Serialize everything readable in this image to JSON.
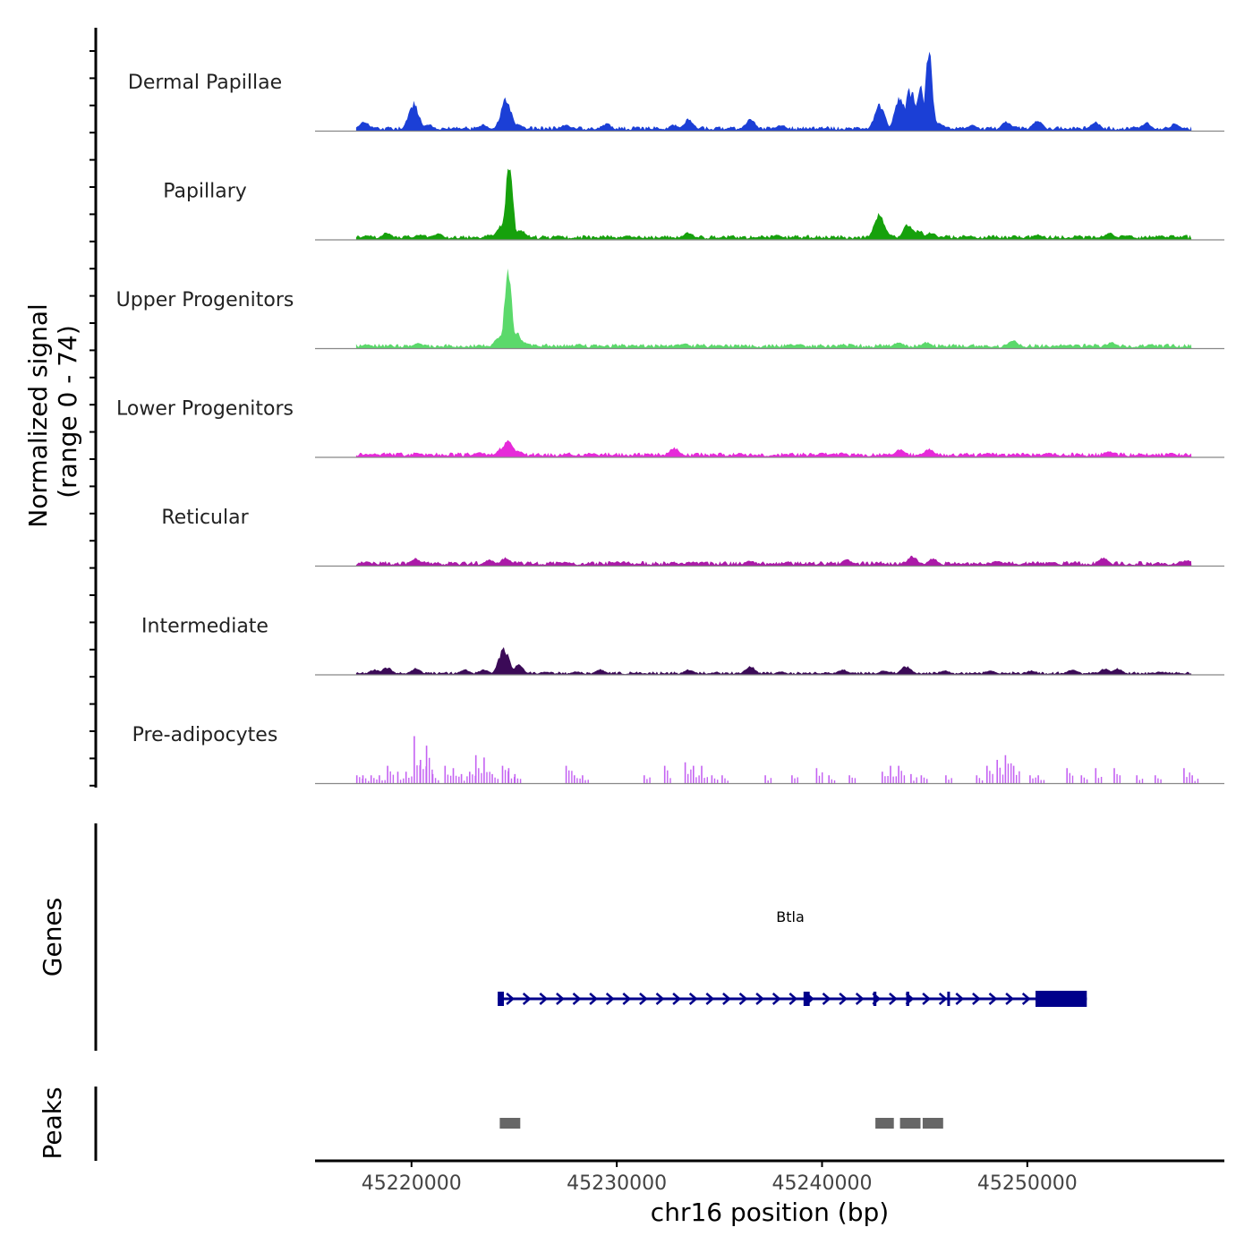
{
  "chart_data": {
    "type": "area",
    "title": "",
    "ylabel": "Normalized signal",
    "ylabel_range": "(range 0 - 74)",
    "xlabel": "chr16 position (bp)",
    "xlim": [
      45215300,
      45259600
    ],
    "ylim": [
      0,
      74
    ],
    "x_ticks": [
      45220000,
      45230000,
      45240000,
      45250000
    ],
    "x_tick_labels": [
      "45220000",
      "45230000",
      "45240000",
      "45250000"
    ],
    "signal_range": [
      45217300,
      45258000
    ],
    "tracks": [
      {
        "name": "Dermal Papillae",
        "color": "#1b3fd6",
        "baseline": 3,
        "peaks": [
          {
            "x": 45217700,
            "y": 9
          },
          {
            "x": 45220100,
            "y": 26
          },
          {
            "x": 45220800,
            "y": 7
          },
          {
            "x": 45223500,
            "y": 6
          },
          {
            "x": 45224600,
            "y": 30
          },
          {
            "x": 45225200,
            "y": 7
          },
          {
            "x": 45227500,
            "y": 6
          },
          {
            "x": 45229500,
            "y": 7
          },
          {
            "x": 45232800,
            "y": 6
          },
          {
            "x": 45233500,
            "y": 11
          },
          {
            "x": 45236500,
            "y": 11
          },
          {
            "x": 45238000,
            "y": 6
          },
          {
            "x": 45242800,
            "y": 24
          },
          {
            "x": 45243800,
            "y": 32
          },
          {
            "x": 45244300,
            "y": 38
          },
          {
            "x": 45244800,
            "y": 42
          },
          {
            "x": 45245200,
            "y": 74
          },
          {
            "x": 45245700,
            "y": 8
          },
          {
            "x": 45247300,
            "y": 6
          },
          {
            "x": 45249000,
            "y": 9
          },
          {
            "x": 45250500,
            "y": 10
          },
          {
            "x": 45253300,
            "y": 9
          },
          {
            "x": 45255800,
            "y": 8
          },
          {
            "x": 45257200,
            "y": 7
          }
        ]
      },
      {
        "name": "Papillary",
        "color": "#16a10c",
        "baseline": 3,
        "peaks": [
          {
            "x": 45217800,
            "y": 4
          },
          {
            "x": 45218800,
            "y": 7
          },
          {
            "x": 45220400,
            "y": 5
          },
          {
            "x": 45221300,
            "y": 6
          },
          {
            "x": 45223800,
            "y": 5
          },
          {
            "x": 45224400,
            "y": 15
          },
          {
            "x": 45224750,
            "y": 74
          },
          {
            "x": 45225300,
            "y": 10
          },
          {
            "x": 45227200,
            "y": 4
          },
          {
            "x": 45230500,
            "y": 4
          },
          {
            "x": 45233500,
            "y": 7
          },
          {
            "x": 45237800,
            "y": 5
          },
          {
            "x": 45242800,
            "y": 24
          },
          {
            "x": 45243200,
            "y": 6
          },
          {
            "x": 45244200,
            "y": 15
          },
          {
            "x": 45244700,
            "y": 9
          },
          {
            "x": 45245300,
            "y": 7
          },
          {
            "x": 45247200,
            "y": 4
          },
          {
            "x": 45250500,
            "y": 5
          },
          {
            "x": 45254000,
            "y": 7
          },
          {
            "x": 45256500,
            "y": 4
          }
        ]
      },
      {
        "name": "Upper Progenitors",
        "color": "#5bd96b",
        "baseline": 3,
        "peaks": [
          {
            "x": 45217800,
            "y": 4
          },
          {
            "x": 45220300,
            "y": 5
          },
          {
            "x": 45224300,
            "y": 12
          },
          {
            "x": 45224700,
            "y": 74
          },
          {
            "x": 45225100,
            "y": 15
          },
          {
            "x": 45225500,
            "y": 6
          },
          {
            "x": 45228200,
            "y": 4
          },
          {
            "x": 45233300,
            "y": 5
          },
          {
            "x": 45238500,
            "y": 4
          },
          {
            "x": 45243700,
            "y": 6
          },
          {
            "x": 45245100,
            "y": 6
          },
          {
            "x": 45249300,
            "y": 8
          },
          {
            "x": 45254100,
            "y": 6
          },
          {
            "x": 45256000,
            "y": 4
          }
        ]
      },
      {
        "name": "Lower Progenitors",
        "color": "#e62ad9",
        "baseline": 3,
        "peaks": [
          {
            "x": 45218000,
            "y": 3
          },
          {
            "x": 45220300,
            "y": 4
          },
          {
            "x": 45223300,
            "y": 5
          },
          {
            "x": 45224400,
            "y": 9
          },
          {
            "x": 45224700,
            "y": 16
          },
          {
            "x": 45225200,
            "y": 6
          },
          {
            "x": 45228800,
            "y": 4
          },
          {
            "x": 45232800,
            "y": 9
          },
          {
            "x": 45236000,
            "y": 4
          },
          {
            "x": 45240000,
            "y": 4
          },
          {
            "x": 45243800,
            "y": 8
          },
          {
            "x": 45245200,
            "y": 8
          },
          {
            "x": 45248000,
            "y": 4
          },
          {
            "x": 45251000,
            "y": 4
          },
          {
            "x": 45254000,
            "y": 6
          },
          {
            "x": 45257000,
            "y": 4
          }
        ]
      },
      {
        "name": "Reticular",
        "color": "#ab1aa8",
        "baseline": 3,
        "peaks": [
          {
            "x": 45217800,
            "y": 4
          },
          {
            "x": 45220200,
            "y": 7
          },
          {
            "x": 45223800,
            "y": 6
          },
          {
            "x": 45224600,
            "y": 8
          },
          {
            "x": 45227500,
            "y": 4
          },
          {
            "x": 45230000,
            "y": 4
          },
          {
            "x": 45233600,
            "y": 4
          },
          {
            "x": 45236500,
            "y": 5
          },
          {
            "x": 45241200,
            "y": 6
          },
          {
            "x": 45244400,
            "y": 9
          },
          {
            "x": 45245400,
            "y": 7
          },
          {
            "x": 45248500,
            "y": 5
          },
          {
            "x": 45251200,
            "y": 4
          },
          {
            "x": 45253700,
            "y": 8
          },
          {
            "x": 45257800,
            "y": 6
          }
        ]
      },
      {
        "name": "Intermediate",
        "color": "#3b0a57",
        "baseline": 2,
        "peaks": [
          {
            "x": 45218200,
            "y": 5
          },
          {
            "x": 45218800,
            "y": 7
          },
          {
            "x": 45220200,
            "y": 6
          },
          {
            "x": 45222600,
            "y": 5
          },
          {
            "x": 45223500,
            "y": 5
          },
          {
            "x": 45224500,
            "y": 24
          },
          {
            "x": 45225200,
            "y": 9
          },
          {
            "x": 45226500,
            "y": 3
          },
          {
            "x": 45228000,
            "y": 3
          },
          {
            "x": 45229200,
            "y": 5
          },
          {
            "x": 45233500,
            "y": 5
          },
          {
            "x": 45236500,
            "y": 8
          },
          {
            "x": 45238000,
            "y": 3
          },
          {
            "x": 45241000,
            "y": 5
          },
          {
            "x": 45243000,
            "y": 4
          },
          {
            "x": 45244100,
            "y": 8
          },
          {
            "x": 45246000,
            "y": 4
          },
          {
            "x": 45248200,
            "y": 4
          },
          {
            "x": 45250200,
            "y": 4
          },
          {
            "x": 45252200,
            "y": 5
          },
          {
            "x": 45253800,
            "y": 6
          },
          {
            "x": 45254400,
            "y": 6
          },
          {
            "x": 45256500,
            "y": 3
          }
        ]
      },
      {
        "name": "Pre-adipocytes",
        "color": "#c462f2",
        "baseline": 0,
        "spikes": [
          {
            "x": 45217300,
            "y": 7
          },
          {
            "x": 45217600,
            "y": 7
          },
          {
            "x": 45218000,
            "y": 7
          },
          {
            "x": 45218400,
            "y": 7
          },
          {
            "x": 45218800,
            "y": 15
          },
          {
            "x": 45219300,
            "y": 10
          },
          {
            "x": 45219700,
            "y": 10
          },
          {
            "x": 45220100,
            "y": 40
          },
          {
            "x": 45220400,
            "y": 20
          },
          {
            "x": 45220700,
            "y": 32
          },
          {
            "x": 45221000,
            "y": 8
          },
          {
            "x": 45221600,
            "y": 15
          },
          {
            "x": 45222000,
            "y": 13
          },
          {
            "x": 45222400,
            "y": 8
          },
          {
            "x": 45222800,
            "y": 10
          },
          {
            "x": 45223100,
            "y": 24
          },
          {
            "x": 45223500,
            "y": 22
          },
          {
            "x": 45223900,
            "y": 8
          },
          {
            "x": 45224400,
            "y": 15
          },
          {
            "x": 45224700,
            "y": 13
          },
          {
            "x": 45225000,
            "y": 8
          },
          {
            "x": 45227500,
            "y": 15
          },
          {
            "x": 45227900,
            "y": 7
          },
          {
            "x": 45228300,
            "y": 7
          },
          {
            "x": 45231300,
            "y": 7
          },
          {
            "x": 45232300,
            "y": 15
          },
          {
            "x": 45233300,
            "y": 18
          },
          {
            "x": 45233700,
            "y": 15
          },
          {
            "x": 45234100,
            "y": 15
          },
          {
            "x": 45234600,
            "y": 7
          },
          {
            "x": 45235100,
            "y": 7
          },
          {
            "x": 45237200,
            "y": 7
          },
          {
            "x": 45238500,
            "y": 7
          },
          {
            "x": 45239700,
            "y": 13
          },
          {
            "x": 45240300,
            "y": 7
          },
          {
            "x": 45241300,
            "y": 7
          },
          {
            "x": 45242900,
            "y": 10
          },
          {
            "x": 45243300,
            "y": 15
          },
          {
            "x": 45243700,
            "y": 15
          },
          {
            "x": 45244300,
            "y": 8
          },
          {
            "x": 45244800,
            "y": 7
          },
          {
            "x": 45246000,
            "y": 7
          },
          {
            "x": 45247500,
            "y": 7
          },
          {
            "x": 45248000,
            "y": 15
          },
          {
            "x": 45248500,
            "y": 20
          },
          {
            "x": 45248900,
            "y": 24
          },
          {
            "x": 45249300,
            "y": 15
          },
          {
            "x": 45250100,
            "y": 7
          },
          {
            "x": 45250500,
            "y": 7
          },
          {
            "x": 45251900,
            "y": 13
          },
          {
            "x": 45252600,
            "y": 7
          },
          {
            "x": 45253300,
            "y": 13
          },
          {
            "x": 45254200,
            "y": 13
          },
          {
            "x": 45255300,
            "y": 7
          },
          {
            "x": 45256200,
            "y": 7
          },
          {
            "x": 45257600,
            "y": 13
          },
          {
            "x": 45258000,
            "y": 7
          }
        ]
      }
    ],
    "genes_panel": {
      "label": "Genes",
      "gene": {
        "name": "Btla",
        "start": 45224200,
        "end": 45252900,
        "strand": "+",
        "color": "#00008b",
        "exons": [
          {
            "start": 45224200,
            "end": 45224500,
            "thick": false
          },
          {
            "start": 45239100,
            "end": 45239400,
            "thick": false
          },
          {
            "start": 45242500,
            "end": 45242650,
            "thick": false
          },
          {
            "start": 45244100,
            "end": 45244250,
            "thick": false
          },
          {
            "start": 45246100,
            "end": 45246200,
            "thick": false
          },
          {
            "start": 45250400,
            "end": 45252900,
            "thick": true
          }
        ]
      }
    },
    "peaks_panel": {
      "label": "Peaks",
      "color": "#666666",
      "regions": [
        {
          "start": 45224300,
          "end": 45225300
        },
        {
          "start": 45242600,
          "end": 45243500
        },
        {
          "start": 45243800,
          "end": 45244800
        },
        {
          "start": 45244900,
          "end": 45245900
        }
      ]
    }
  }
}
